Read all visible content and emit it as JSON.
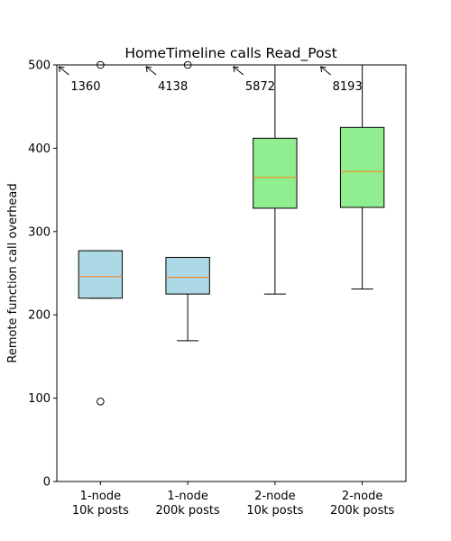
{
  "chart_data": {
    "type": "box",
    "title": "HomeTimeline calls Read_Post",
    "xlabel": "",
    "ylabel": "Remote function call overhead",
    "ylim": [
      0,
      500
    ],
    "yticks": [
      0,
      100,
      200,
      300,
      400,
      500
    ],
    "grid": false,
    "legend": "none",
    "categories": [
      [
        "1-node",
        "10k posts"
      ],
      [
        "1-node",
        "200k posts"
      ],
      [
        "2-node",
        "10k posts"
      ],
      [
        "2-node",
        "200k posts"
      ]
    ],
    "boxes": [
      {
        "whisker_low": 220,
        "q1": 220,
        "median": 246,
        "q3": 277,
        "whisker_high": 277,
        "outliers": [
          96,
          500
        ],
        "fill": "#add8e6"
      },
      {
        "whisker_low": 169,
        "q1": 225,
        "median": 245,
        "q3": 269,
        "whisker_high": 269,
        "outliers": [
          500
        ],
        "fill": "#add8e6"
      },
      {
        "whisker_low": 225,
        "q1": 328,
        "median": 365,
        "q3": 412,
        "whisker_high": 500,
        "outliers": [],
        "fill": "#90ee90"
      },
      {
        "whisker_low": 231,
        "q1": 329,
        "median": 372,
        "q3": 425,
        "whisker_high": 500,
        "outliers": [],
        "fill": "#90ee90"
      }
    ],
    "annotations": [
      "1360",
      "4138",
      "5872",
      "8193"
    ],
    "colors": {
      "median": "#ff7f0e",
      "edge": "#000000"
    }
  }
}
